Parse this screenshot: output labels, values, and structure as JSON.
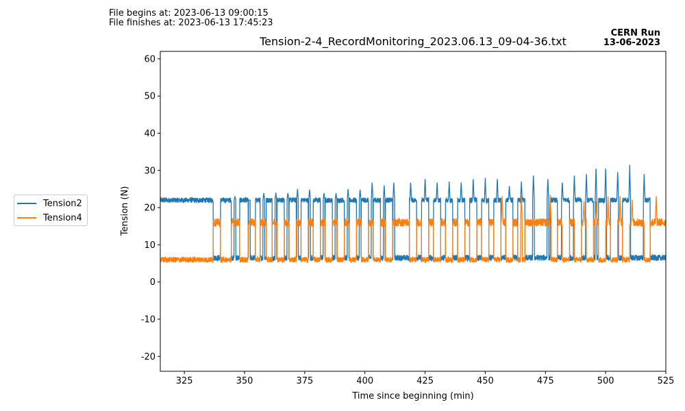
{
  "header": {
    "file_begins": "File begins at: 2023-06-13 09:00:15",
    "file_finishes": "File finishes at: 2023-06-13 17:45:23",
    "run_line1": "CERN Run",
    "run_line2": "13-06-2023"
  },
  "chart_data": {
    "type": "line",
    "title": "Tension-2-4_RecordMonitoring_2023.06.13_09-04-36.txt",
    "xlabel": "Time since beginning (min)",
    "ylabel": "Tension (N)",
    "xlim": [
      315,
      525
    ],
    "ylim": [
      -24,
      62
    ],
    "xticks": [
      325,
      350,
      375,
      400,
      425,
      450,
      475,
      500,
      525
    ],
    "yticks": [
      -20,
      -10,
      0,
      10,
      20,
      30,
      40,
      50,
      60
    ],
    "grid": false,
    "legend_position": "outside-left",
    "series": [
      {
        "name": "Tension2",
        "color": "#1f77b4",
        "baseline_high": 22,
        "baseline_low": 6.5,
        "pulses_low": [
          [
            337,
            340
          ],
          [
            344.5,
            348
          ],
          [
            351.5,
            354.5
          ],
          [
            356.5,
            359
          ],
          [
            361.5,
            363.5
          ],
          [
            366.5,
            368.5
          ],
          [
            371.5,
            373.5
          ],
          [
            376.5,
            378.5
          ],
          [
            381.5,
            383.5
          ],
          [
            386.5,
            388.5
          ],
          [
            391.5,
            393.5
          ],
          [
            396.5,
            398.5
          ],
          [
            401.5,
            403.5
          ],
          [
            406.5,
            408.5
          ],
          [
            411.5,
            418.5
          ],
          [
            421.5,
            423.5
          ],
          [
            426.5,
            428.5
          ],
          [
            431.5,
            433.5
          ],
          [
            436.5,
            438.5
          ],
          [
            441.5,
            443.5
          ],
          [
            446.5,
            448.5
          ],
          [
            451.5,
            453.5
          ],
          [
            456.5,
            458.5
          ],
          [
            461.5,
            463.5
          ],
          [
            466.5,
            477
          ],
          [
            480,
            482
          ],
          [
            485,
            487
          ],
          [
            490,
            492
          ],
          [
            495,
            497
          ],
          [
            500,
            502
          ],
          [
            505,
            507
          ],
          [
            510,
            516
          ],
          [
            518.5,
            525
          ]
        ],
        "spike_peaks": [
          [
            346,
            23
          ],
          [
            352,
            22
          ],
          [
            358,
            24
          ],
          [
            363,
            24
          ],
          [
            368,
            24
          ],
          [
            372,
            25
          ],
          [
            377,
            25
          ],
          [
            383,
            24
          ],
          [
            388,
            24
          ],
          [
            393,
            25
          ],
          [
            398,
            25
          ],
          [
            403,
            27
          ],
          [
            408,
            26
          ],
          [
            412,
            27
          ],
          [
            419,
            27
          ],
          [
            425,
            28
          ],
          [
            430,
            27
          ],
          [
            435,
            27
          ],
          [
            440,
            27
          ],
          [
            445,
            28
          ],
          [
            450,
            28
          ],
          [
            455,
            28
          ],
          [
            460,
            26
          ],
          [
            465,
            27
          ],
          [
            470,
            29
          ],
          [
            476,
            28
          ],
          [
            482,
            27
          ],
          [
            487,
            29
          ],
          [
            492,
            29
          ],
          [
            496,
            31
          ],
          [
            500,
            31
          ],
          [
            505,
            30
          ],
          [
            510,
            31.5
          ],
          [
            516,
            29
          ]
        ]
      },
      {
        "name": "Tension4",
        "color": "#ff7f0e",
        "baseline_high": 16,
        "baseline_low": 6,
        "pulses_high": [
          [
            337,
            340
          ],
          [
            344.5,
            348
          ],
          [
            351.5,
            354.5
          ],
          [
            356.5,
            359
          ],
          [
            361.5,
            363.5
          ],
          [
            366.5,
            368.5
          ],
          [
            371.5,
            373.5
          ],
          [
            376.5,
            378.5
          ],
          [
            381.5,
            383.5
          ],
          [
            386.5,
            388.5
          ],
          [
            391.5,
            393.5
          ],
          [
            396.5,
            398.5
          ],
          [
            401.5,
            403.5
          ],
          [
            406.5,
            408.5
          ],
          [
            411.5,
            418.5
          ],
          [
            421.5,
            423.5
          ],
          [
            426.5,
            428.5
          ],
          [
            431.5,
            433.5
          ],
          [
            436.5,
            438.5
          ],
          [
            441.5,
            443.5
          ],
          [
            446.5,
            448.5
          ],
          [
            451.5,
            453.5
          ],
          [
            456.5,
            458.5
          ],
          [
            461.5,
            463.5
          ],
          [
            466.5,
            477
          ],
          [
            480,
            482
          ],
          [
            485,
            487
          ],
          [
            490,
            492
          ],
          [
            495,
            497
          ],
          [
            500,
            502
          ],
          [
            505,
            507
          ],
          [
            510,
            516
          ],
          [
            518.5,
            525
          ]
        ],
        "spike_peaks": [
          [
            457,
            23.5
          ],
          [
            465,
            23.5
          ],
          [
            477,
            23.5
          ],
          [
            491,
            22
          ],
          [
            496,
            22
          ],
          [
            501,
            23
          ],
          [
            506,
            23.5
          ],
          [
            511,
            22.5
          ],
          [
            521,
            23.5
          ]
        ]
      }
    ]
  }
}
